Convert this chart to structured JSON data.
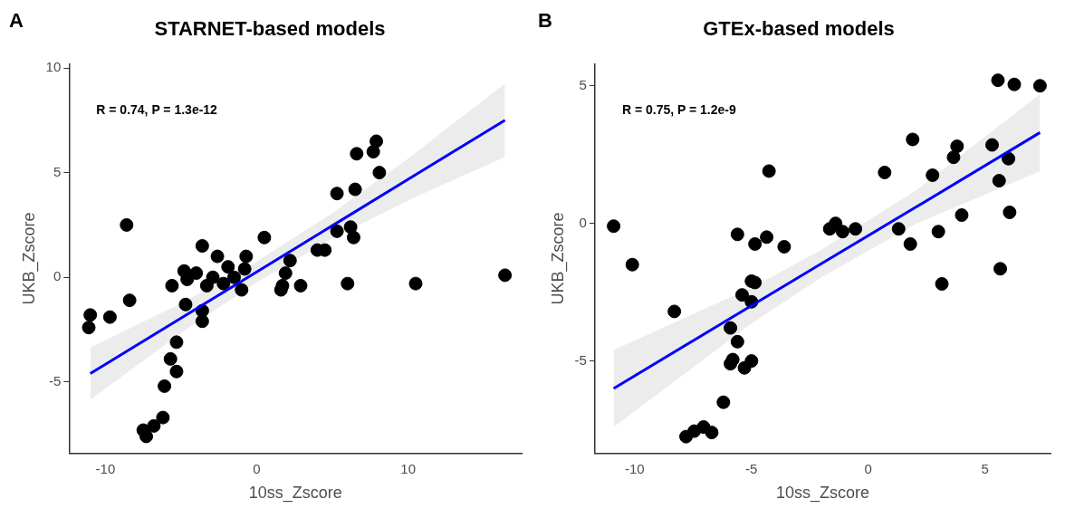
{
  "chart_data": [
    {
      "type": "scatter",
      "title": "STARNET-based models",
      "xlabel": "10ss_Zscore",
      "ylabel": "UKB_Zscore",
      "annotations": [
        "A",
        "R = 0.74, P = 1.3e-12"
      ],
      "xlim": [
        -12.4,
        17.5
      ],
      "ylim": [
        -8.4,
        10.2
      ],
      "xticks": [
        -10,
        0,
        10
      ],
      "yticks": [
        -5,
        0,
        5,
        10
      ],
      "grid": false,
      "legend": false,
      "series": [
        {
          "marker": "circle",
          "color": "#000000",
          "x": [
            -11.1,
            -11.0,
            -9.7,
            -8.6,
            -8.4,
            -7.5,
            -7.3,
            -6.8,
            -6.2,
            -6.1,
            -5.3,
            -5.7,
            -5.3,
            -5.6,
            -4.8,
            -4.6,
            -4.7,
            -4.0,
            -3.6,
            -3.6,
            -3.6,
            -3.3,
            -2.9,
            -2.6,
            -2.2,
            -1.9,
            -1.5,
            -1.0,
            -0.8,
            -0.7,
            0.5,
            1.7,
            1.9,
            2.2,
            1.6,
            2.9,
            4.0,
            4.5,
            5.3,
            6.2,
            6.4,
            5.3,
            6.5,
            6.6,
            7.7,
            7.9,
            8.1,
            6.0,
            10.5,
            16.4
          ],
          "values": [
            -2.4,
            -1.8,
            -1.9,
            2.5,
            -1.1,
            -7.3,
            -7.6,
            -7.1,
            -6.7,
            -5.2,
            -4.5,
            -3.9,
            -3.1,
            -0.4,
            0.3,
            -0.1,
            -1.3,
            0.2,
            1.5,
            -2.1,
            -1.6,
            -0.4,
            0.0,
            1.0,
            -0.3,
            0.5,
            0.0,
            -0.6,
            0.4,
            1.0,
            1.9,
            -0.4,
            0.2,
            0.8,
            -0.6,
            -0.4,
            1.3,
            1.3,
            2.2,
            2.4,
            1.9,
            4.0,
            4.2,
            5.9,
            6.0,
            6.5,
            5.0,
            -0.3,
            -0.3,
            0.1
          ]
        },
        {
          "type": "line",
          "marker": "none",
          "color": "#0000ff",
          "x": [
            -11,
            -5,
            0,
            5,
            10,
            16.4
          ],
          "values": [
            -4.6,
            -1.95,
            0.26,
            2.47,
            4.68,
            7.5
          ],
          "lower": [
            -5.85,
            -2.65,
            -0.24,
            1.87,
            3.68,
            5.75
          ],
          "upper": [
            -3.35,
            -1.25,
            0.76,
            3.07,
            5.68,
            9.25
          ]
        }
      ]
    },
    {
      "type": "scatter",
      "title": "GTEx-based models",
      "xlabel": "10ss_Zscore",
      "ylabel": "UKB_Zscore",
      "annotations": [
        "B",
        "R = 0.75, P = 1.2e-9"
      ],
      "xlim": [
        -11.7,
        7.8
      ],
      "ylim": [
        -8.35,
        5.8
      ],
      "xticks": [
        -10,
        -5,
        0,
        5
      ],
      "yticks": [
        -5,
        0,
        5
      ],
      "grid": false,
      "legend": false,
      "series": [
        {
          "marker": "circle",
          "color": "#000000",
          "x": [
            -10.9,
            -10.1,
            -8.3,
            -7.8,
            -7.45,
            -7.05,
            -6.7,
            -6.2,
            -5.6,
            -5.6,
            -5.9,
            -5.9,
            -5.8,
            -5.3,
            -5.0,
            -5.4,
            -5.0,
            -4.85,
            -5.0,
            -4.85,
            -4.35,
            -4.25,
            -3.6,
            -1.65,
            -1.4,
            -1.1,
            -0.55,
            0.7,
            1.3,
            1.8,
            1.9,
            2.75,
            3.0,
            3.15,
            3.65,
            3.8,
            4.0,
            5.3,
            5.55,
            6.25,
            7.35,
            6.0,
            5.6,
            6.05,
            5.65
          ],
          "values": [
            -0.1,
            -1.5,
            -3.2,
            -7.75,
            -7.55,
            -7.4,
            -7.6,
            -6.5,
            -0.4,
            -4.3,
            -3.8,
            -5.1,
            -4.95,
            -5.25,
            -5.0,
            -2.6,
            -2.1,
            -2.15,
            -2.85,
            -0.75,
            -0.5,
            1.9,
            -0.85,
            -0.2,
            0.0,
            -0.3,
            -0.2,
            1.85,
            -0.2,
            -0.75,
            3.05,
            1.75,
            -0.3,
            -2.2,
            2.4,
            2.8,
            0.3,
            2.85,
            5.2,
            5.05,
            5.0,
            2.35,
            1.55,
            0.4,
            -1.65
          ]
        },
        {
          "type": "line",
          "marker": "none",
          "color": "#0000ff",
          "x": [
            -10.9,
            -5,
            -2,
            2,
            7.35
          ],
          "values": [
            -6.0,
            -2.99,
            -1.46,
            0.57,
            3.3
          ],
          "lower": [
            -7.4,
            -3.64,
            -1.96,
            -0.03,
            1.9
          ],
          "upper": [
            -4.6,
            -2.34,
            -0.96,
            1.17,
            4.7
          ]
        }
      ]
    }
  ]
}
